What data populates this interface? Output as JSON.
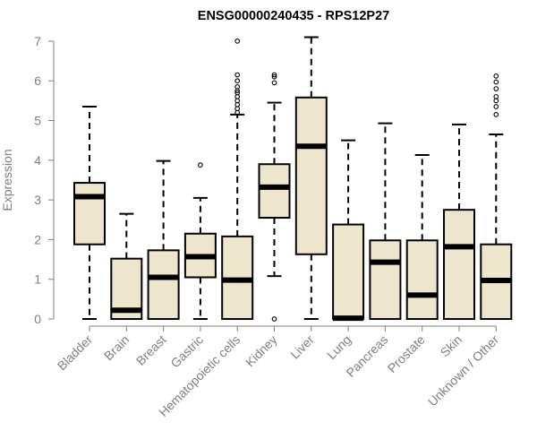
{
  "chart_data": {
    "type": "boxplot",
    "title": "ENSG00000240435 - RPS12P27",
    "xlabel": "",
    "ylabel": "Expression",
    "ylim": [
      0,
      7
    ],
    "yticks": [
      0,
      1,
      2,
      3,
      4,
      5,
      6,
      7
    ],
    "box_color": "#ede6cc",
    "axis_color": "#808080",
    "categories": [
      "Bladder",
      "Brain",
      "Breast",
      "Gastric",
      "Hematopoietic cells",
      "Kidney",
      "Liver",
      "Lung",
      "Pancreas",
      "Prostate",
      "Skin",
      "Unknown / Other"
    ],
    "boxes": [
      {
        "name": "Bladder",
        "whisker_low": 0.0,
        "q1": 1.88,
        "median": 3.08,
        "q3": 3.43,
        "whisker_high": 5.35,
        "outliers": []
      },
      {
        "name": "Brain",
        "whisker_low": 0.0,
        "q1": 0.0,
        "median": 0.22,
        "q3": 1.52,
        "whisker_high": 2.65,
        "outliers": []
      },
      {
        "name": "Breast",
        "whisker_low": 0.0,
        "q1": 0.0,
        "median": 1.05,
        "q3": 1.73,
        "whisker_high": 3.98,
        "outliers": []
      },
      {
        "name": "Gastric",
        "whisker_low": 0.0,
        "q1": 1.05,
        "median": 1.57,
        "q3": 2.15,
        "whisker_high": 3.05,
        "outliers": [
          3.88
        ]
      },
      {
        "name": "Hematopoietic cells",
        "whisker_low": 0.0,
        "q1": 0.0,
        "median": 0.98,
        "q3": 2.08,
        "whisker_high": 5.15,
        "outliers": [
          5.2,
          5.3,
          5.4,
          5.5,
          5.6,
          5.7,
          5.75,
          5.85,
          6.0,
          6.15,
          7.0
        ]
      },
      {
        "name": "Kidney",
        "whisker_low": 1.08,
        "q1": 2.55,
        "median": 3.32,
        "q3": 3.9,
        "whisker_high": 5.45,
        "outliers": [
          0.0,
          5.95,
          6.1,
          6.15
        ]
      },
      {
        "name": "Liver",
        "whisker_low": 0.0,
        "q1": 1.63,
        "median": 4.35,
        "q3": 5.58,
        "whisker_high": 7.1,
        "outliers": []
      },
      {
        "name": "Lung",
        "whisker_low": 0.0,
        "q1": 0.0,
        "median": 0.02,
        "q3": 2.38,
        "whisker_high": 4.5,
        "outliers": []
      },
      {
        "name": "Pancreas",
        "whisker_low": 0.0,
        "q1": 0.0,
        "median": 1.43,
        "q3": 1.98,
        "whisker_high": 4.93,
        "outliers": []
      },
      {
        "name": "Prostate",
        "whisker_low": 0.0,
        "q1": 0.0,
        "median": 0.6,
        "q3": 1.98,
        "whisker_high": 4.13,
        "outliers": []
      },
      {
        "name": "Skin",
        "whisker_low": 0.0,
        "q1": 0.0,
        "median": 1.82,
        "q3": 2.75,
        "whisker_high": 4.9,
        "outliers": []
      },
      {
        "name": "Unknown / Other",
        "whisker_low": 0.0,
        "q1": 0.0,
        "median": 0.97,
        "q3": 1.88,
        "whisker_high": 4.65,
        "outliers": [
          5.15,
          5.35,
          5.5,
          5.6,
          5.8,
          5.97,
          6.12
        ]
      }
    ]
  }
}
